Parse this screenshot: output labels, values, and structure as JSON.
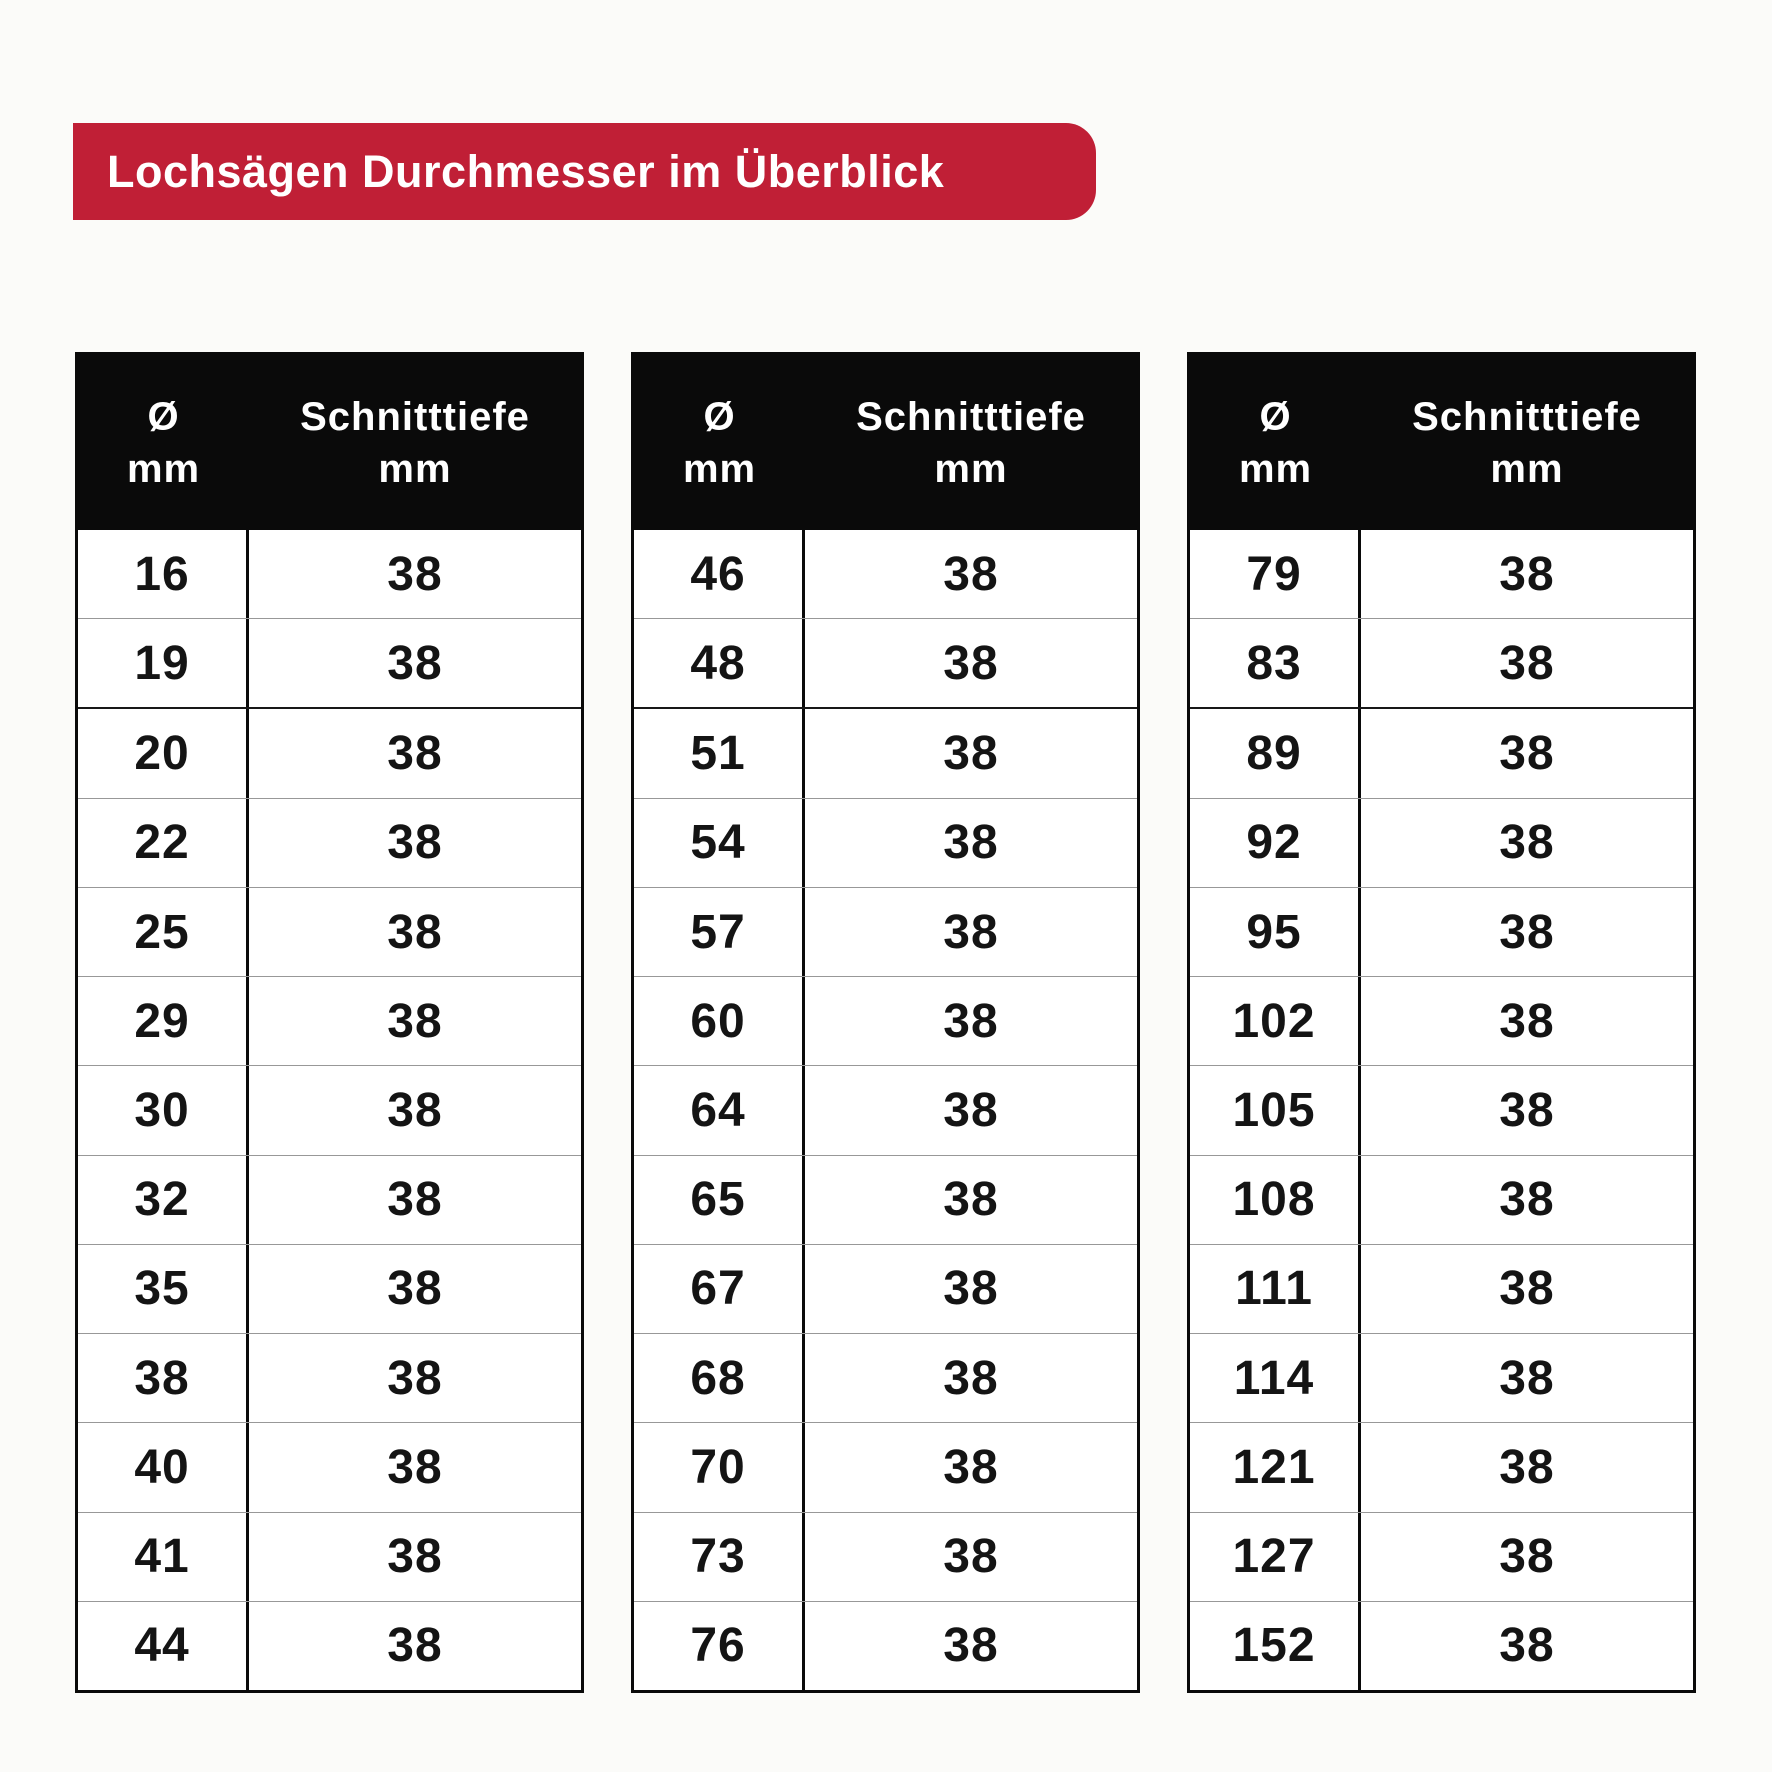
{
  "title": "Lochsägen Durchmesser im Überblick",
  "colors": {
    "banner_red": "#C01F36",
    "header_black": "#0A0A0A",
    "row_divider_gray": "#989898",
    "text_dark": "#141414",
    "background": "#FBFBF9"
  },
  "chart_data": {
    "type": "table",
    "title": "Lochsägen Durchmesser im Überblick",
    "columns": [
      "Ø mm",
      "Schnitttiefe mm"
    ],
    "column_header_lines": [
      [
        "Ø",
        "mm"
      ],
      [
        "Schnitttiefe",
        "mm"
      ]
    ],
    "tables": [
      {
        "rows": [
          [
            16,
            38
          ],
          [
            19,
            38
          ],
          [
            20,
            38
          ],
          [
            22,
            38
          ],
          [
            25,
            38
          ],
          [
            29,
            38
          ],
          [
            30,
            38
          ],
          [
            32,
            38
          ],
          [
            35,
            38
          ],
          [
            38,
            38
          ],
          [
            40,
            38
          ],
          [
            41,
            38
          ],
          [
            44,
            38
          ]
        ]
      },
      {
        "rows": [
          [
            46,
            38
          ],
          [
            48,
            38
          ],
          [
            51,
            38
          ],
          [
            54,
            38
          ],
          [
            57,
            38
          ],
          [
            60,
            38
          ],
          [
            64,
            38
          ],
          [
            65,
            38
          ],
          [
            67,
            38
          ],
          [
            68,
            38
          ],
          [
            70,
            38
          ],
          [
            73,
            38
          ],
          [
            76,
            38
          ]
        ]
      },
      {
        "rows": [
          [
            79,
            38
          ],
          [
            83,
            38
          ],
          [
            89,
            38
          ],
          [
            92,
            38
          ],
          [
            95,
            38
          ],
          [
            102,
            38
          ],
          [
            105,
            38
          ],
          [
            108,
            38
          ],
          [
            111,
            38
          ],
          [
            114,
            38
          ],
          [
            121,
            38
          ],
          [
            127,
            38
          ],
          [
            152,
            38
          ]
        ]
      }
    ]
  }
}
